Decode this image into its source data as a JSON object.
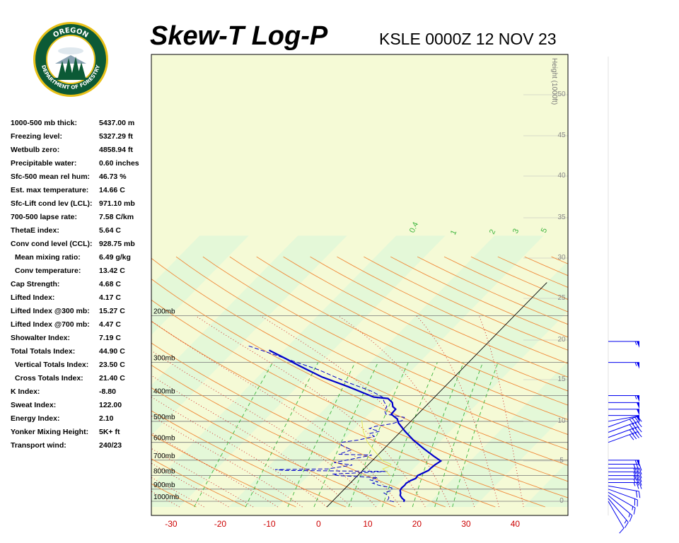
{
  "header": {
    "title": "Skew-T Log-P",
    "station": "KSLE 0000Z 12 NOV 23"
  },
  "logo": {
    "top_text": "OREGON",
    "bottom_text": "DEPARTMENT OF FORESTRY"
  },
  "stats": [
    {
      "label": "1000-500 mb thick:",
      "value": "5437.00 m"
    },
    {
      "label": "Freezing level:",
      "value": "5327.29 ft"
    },
    {
      "label": "Wetbulb zero:",
      "value": "4858.94 ft"
    },
    {
      "label": "Precipitable water:",
      "value": "0.60 inches"
    },
    {
      "label": "Sfc-500 mean rel hum:",
      "value": "46.73 %"
    },
    {
      "label": "Est. max temperature:",
      "value": "14.66 C"
    },
    {
      "label": "Sfc-Lift cond lev (LCL):",
      "value": "971.10 mb"
    },
    {
      "label": "700-500 lapse rate:",
      "value": "7.58 C/km"
    },
    {
      "label": "ThetaE index:",
      "value": "5.64 C"
    },
    {
      "label": "Conv cond level (CCL):",
      "value": "928.75 mb"
    },
    {
      "label": "Mean mixing ratio:",
      "value": "6.49 g/kg"
    },
    {
      "label": "Conv temperature:",
      "value": "13.42 C"
    },
    {
      "label": "Cap Strength:",
      "value": "4.68 C"
    },
    {
      "label": "Lifted Index:",
      "value": "4.17 C"
    },
    {
      "label": "Lifted Index @300 mb:",
      "value": "15.27 C"
    },
    {
      "label": "Lifted Index @700 mb:",
      "value": "4.47 C"
    },
    {
      "label": "Showalter Index:",
      "value": "7.19 C"
    },
    {
      "label": "Total Totals Index:",
      "value": "44.90 C"
    },
    {
      "label": "Vertical Totals Index:",
      "value": "23.50 C"
    },
    {
      "label": "Cross Totals Index:",
      "value": "21.40 C"
    },
    {
      "label": "K Index:",
      "value": "-8.80"
    },
    {
      "label": "Sweat Index:",
      "value": "122.00"
    },
    {
      "label": "Energy Index:",
      "value": "2.10"
    },
    {
      "label": "Yonker Mixing Height:",
      "value": "5K+ ft"
    },
    {
      "label": "Transport wind:",
      "value": "240/23"
    }
  ],
  "chart_data": {
    "type": "line",
    "xlabel": "",
    "ylabel": "",
    "x_ticks": [
      "-30",
      "-20",
      "-10",
      "0",
      "10",
      "20",
      "30",
      "40"
    ],
    "pressure_labels": [
      "200mb",
      "300mb",
      "400mb",
      "500mb",
      "600mb",
      "700mb",
      "800mb",
      "900mb",
      "1000mb"
    ],
    "height_axis_label": "Height (1000ft)",
    "height_ticks": [
      "50",
      "45",
      "40",
      "35",
      "30",
      "25",
      "20",
      "15",
      "10",
      "5",
      "0"
    ],
    "mixing_ratio_labels": [
      "0.4",
      "1",
      "2",
      "3",
      "5"
    ],
    "colors": {
      "background_band_a": "#f5fad6",
      "background_band_b": "#e4f8d8",
      "dry_adiabat": "#f08a3a",
      "moist_adiabat": "#cf2020",
      "mixing_ratio": "#3db43d",
      "temperature": "#0000cc",
      "dewpoint": "#0000cc",
      "parcel": "#e6e65a",
      "wind_barb": "#0000ee",
      "isobar": "#777777"
    },
    "series": [
      {
        "points": [
          [
            14.6,
            1005
          ],
          [
            14.4,
            990
          ],
          [
            13.6,
            975
          ],
          [
            12.6,
            950
          ],
          [
            12.2,
            930
          ],
          [
            11.6,
            910
          ],
          [
            11.4,
            890
          ],
          [
            11.5,
            870
          ],
          [
            11.4,
            855
          ],
          [
            11.8,
            835
          ],
          [
            12.4,
            820
          ],
          [
            12.2,
            800
          ],
          [
            13.4,
            765
          ],
          [
            13.4,
            750
          ],
          [
            13.6,
            728
          ],
          [
            14.0,
            705
          ],
          [
            11.5,
            675
          ],
          [
            8.2,
            635
          ],
          [
            4.4,
            590
          ],
          [
            0.8,
            545
          ],
          [
            -2.2,
            507
          ],
          [
            -3.2,
            490
          ],
          [
            -4.3,
            480
          ],
          [
            -5.4,
            470
          ],
          [
            -5.5,
            450
          ],
          [
            -6.6,
            440
          ],
          [
            -7.5,
            425
          ],
          [
            -9.2,
            410
          ],
          [
            -12.4,
            405
          ],
          [
            -19.7,
            370
          ],
          [
            -27.0,
            340
          ],
          [
            -33.5,
            310
          ],
          [
            -38.0,
            290
          ],
          [
            -43.0,
            270
          ]
        ]
      },
      {
        "points": [
          [
            12.6,
            1005
          ],
          [
            11.0,
            990
          ],
          [
            10.8,
            970
          ],
          [
            10.1,
            950
          ],
          [
            8.8,
            930
          ],
          [
            9.9,
            910
          ],
          [
            9.4,
            890
          ],
          [
            6.2,
            870
          ],
          [
            4.6,
            855
          ],
          [
            5.4,
            845
          ],
          [
            3.3,
            830
          ],
          [
            4.5,
            815
          ],
          [
            -4.0,
            800
          ],
          [
            -5.4,
            790
          ],
          [
            5.2,
            772
          ],
          [
            -16.0,
            765
          ],
          [
            -18.0,
            760
          ],
          [
            -7.4,
            755
          ],
          [
            -3.2,
            730
          ],
          [
            -7.4,
            715
          ],
          [
            -1.2,
            670
          ],
          [
            -8.1,
            665
          ],
          [
            -6.4,
            640
          ],
          [
            -9.4,
            615
          ],
          [
            -10.0,
            600
          ],
          [
            -7.0,
            588
          ],
          [
            -4.4,
            570
          ],
          [
            -5.9,
            555
          ],
          [
            -4.4,
            545
          ],
          [
            -7.0,
            532
          ],
          [
            -6.2,
            522
          ],
          [
            -3.3,
            510
          ],
          [
            -1.8,
            495
          ],
          [
            -2.1,
            483
          ],
          [
            -6.5,
            470
          ],
          [
            -7.5,
            455
          ],
          [
            -7.8,
            440
          ],
          [
            -9.5,
            420
          ],
          [
            -10.6,
            405
          ],
          [
            -14.0,
            385
          ],
          [
            -21.0,
            355
          ],
          [
            -29.0,
            320
          ],
          [
            -38.0,
            290
          ],
          [
            -48.0,
            260
          ]
        ]
      },
      {
        "points": [
          [
            6.6,
            800
          ],
          [
            5.0,
            772
          ],
          [
            3.8,
            755
          ],
          [
            4.6,
            740
          ],
          [
            4.5,
            725
          ],
          [
            2.2,
            705
          ],
          [
            -4.6,
            600
          ],
          [
            -7.7,
            545
          ],
          [
            -10.2,
            495
          ]
        ]
      }
    ],
    "wind_barbs": [
      {
        "pressure": 1000,
        "dir": 330,
        "speed": 10
      },
      {
        "pressure": 975,
        "dir": 320,
        "speed": 15
      },
      {
        "pressure": 950,
        "dir": 310,
        "speed": 15
      },
      {
        "pressure": 925,
        "dir": 300,
        "speed": 15
      },
      {
        "pressure": 900,
        "dir": 290,
        "speed": 20
      },
      {
        "pressure": 875,
        "dir": 280,
        "speed": 20
      },
      {
        "pressure": 850,
        "dir": 270,
        "speed": 25
      },
      {
        "pressure": 825,
        "dir": 270,
        "speed": 25
      },
      {
        "pressure": 800,
        "dir": 270,
        "speed": 25
      },
      {
        "pressure": 775,
        "dir": 270,
        "speed": 30
      },
      {
        "pressure": 750,
        "dir": 270,
        "speed": 30
      },
      {
        "pressure": 725,
        "dir": 270,
        "speed": 30
      },
      {
        "pressure": 700,
        "dir": 270,
        "speed": 55
      },
      {
        "pressure": 600,
        "dir": 250,
        "speed": 40
      },
      {
        "pressure": 575,
        "dir": 250,
        "speed": 40
      },
      {
        "pressure": 550,
        "dir": 250,
        "speed": 40
      },
      {
        "pressure": 525,
        "dir": 250,
        "speed": 40
      },
      {
        "pressure": 500,
        "dir": 260,
        "speed": 50
      },
      {
        "pressure": 475,
        "dir": 270,
        "speed": 50
      },
      {
        "pressure": 450,
        "dir": 270,
        "speed": 50
      },
      {
        "pressure": 425,
        "dir": 270,
        "speed": 50
      },
      {
        "pressure": 400,
        "dir": 270,
        "speed": 55
      },
      {
        "pressure": 300,
        "dir": 270,
        "speed": 55
      },
      {
        "pressure": 250,
        "dir": 270,
        "speed": 55
      }
    ]
  }
}
